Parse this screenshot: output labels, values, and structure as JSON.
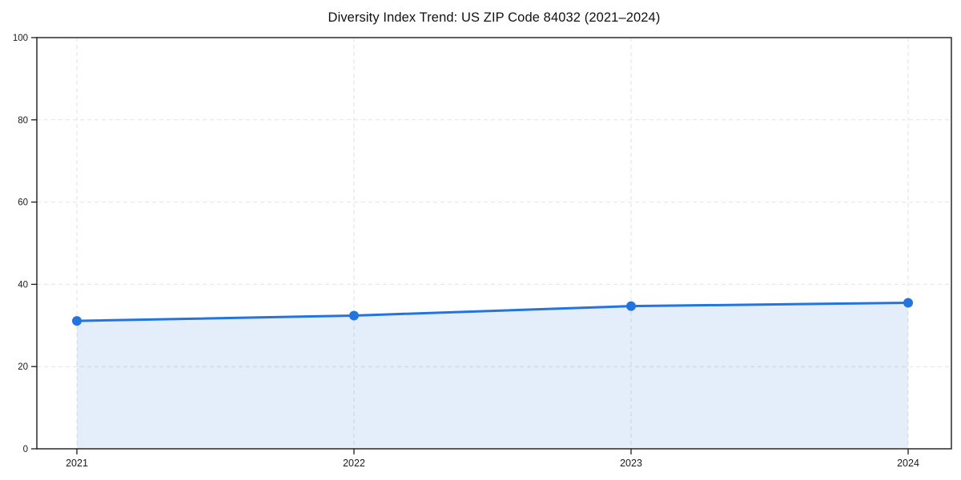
{
  "chart_data": {
    "type": "area",
    "title": "Diversity Index Trend: US ZIP Code 84032 (2021–2024)",
    "x": [
      "2021",
      "2022",
      "2023",
      "2024"
    ],
    "series": [
      {
        "name": "Diversity Index",
        "values": [
          31.1,
          32.4,
          34.7,
          35.5
        ]
      }
    ],
    "xlabel": "",
    "ylabel": "",
    "ylim": [
      0,
      100
    ],
    "yticks": [
      0,
      20,
      40,
      60,
      80,
      100
    ],
    "grid": true,
    "grid_style": "dashed",
    "legend": "none",
    "colors": {
      "line": "#2274e0",
      "marker": "#2274e0",
      "fill": "#2274e0",
      "fill_opacity": 0.12,
      "gridline": "#e2e2e2",
      "spine": "#1a1a1a",
      "tick_label": "#1a1a1a"
    }
  }
}
